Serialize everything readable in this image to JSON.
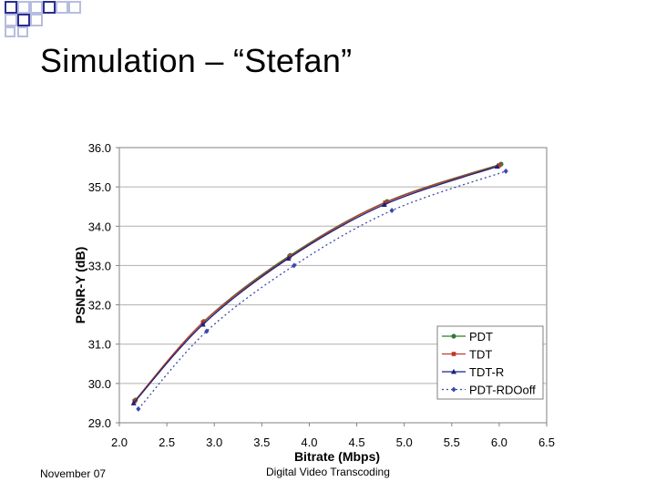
{
  "slide": {
    "title": "Simulation – “Stefan”",
    "footer_left": "November 07",
    "footer_center": "Digital Video Transcoding"
  },
  "colors": {
    "deco_dark": "#2b2f8f",
    "deco_light": "#b7bde0",
    "pdt": "#2e7d32",
    "tdt": "#c0392b",
    "tdt_r": "#1a237e",
    "pdt_rdooff": "#3949ab"
  },
  "chart_data": {
    "type": "line",
    "xlabel": "Bitrate (Mbps)",
    "ylabel": "PSNR-Y (dB)",
    "xlim": [
      2.0,
      6.5
    ],
    "ylim": [
      29.0,
      36.0
    ],
    "x_ticks": [
      "2.0",
      "2.5",
      "3.0",
      "3.5",
      "4.0",
      "4.5",
      "5.0",
      "5.5",
      "6.0",
      "6.5"
    ],
    "y_ticks": [
      "36.0",
      "35.0",
      "34.0",
      "33.0",
      "32.0",
      "31.0",
      "30.0",
      "29.0"
    ],
    "grid": "horizontal",
    "legend_position": "bottom-right",
    "series": [
      {
        "name": "PDT",
        "marker": "circle",
        "dash": "solid",
        "color": "#2e7d32",
        "x": [
          2.17,
          2.89,
          3.8,
          4.82,
          6.02
        ],
        "y": [
          29.58,
          31.58,
          33.26,
          34.63,
          35.58
        ]
      },
      {
        "name": "TDT",
        "marker": "square",
        "dash": "solid",
        "color": "#c0392b",
        "x": [
          2.16,
          2.88,
          3.79,
          4.8,
          6.0
        ],
        "y": [
          29.55,
          31.55,
          33.22,
          34.6,
          35.55
        ]
      },
      {
        "name": "TDT-R",
        "marker": "triangle",
        "dash": "solid",
        "color": "#1a237e",
        "x": [
          2.15,
          2.88,
          3.78,
          4.79,
          5.98
        ],
        "y": [
          29.5,
          31.5,
          33.18,
          34.55,
          35.52
        ]
      },
      {
        "name": "PDT-RDOoff",
        "marker": "diamond",
        "dash": "dotted",
        "color": "#3949ab",
        "x": [
          2.2,
          2.92,
          3.84,
          4.87,
          6.07
        ],
        "y": [
          29.35,
          31.33,
          33.0,
          34.4,
          35.4
        ]
      }
    ]
  }
}
